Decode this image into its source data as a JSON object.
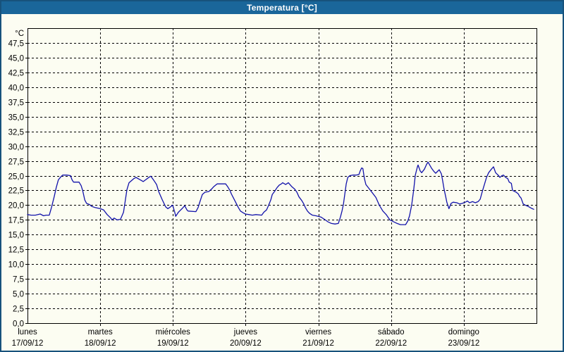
{
  "window": {
    "title": "Temperatura [°C]"
  },
  "colors": {
    "titlebar_bg": "#1a669a",
    "window_border": "#17527c",
    "background": "#fcfdf2",
    "grid": "#000000",
    "series_line": "#1212aa",
    "title_text": "#ffffff",
    "label_text": "#000000"
  },
  "chart_data": {
    "type": "line",
    "title": "Temperatura [°C]",
    "y_unit_label": "°C",
    "ylim": [
      0,
      50
    ],
    "ytick_step": 2.5,
    "ytick_labels": [
      "0,0",
      "2,5",
      "5,0",
      "7,5",
      "10,0",
      "12,5",
      "15,0",
      "17,5",
      "20,0",
      "22,5",
      "25,0",
      "27,5",
      "30,0",
      "32,5",
      "35,0",
      "37,5",
      "40,0",
      "42,5",
      "45,0",
      "47,5"
    ],
    "grid": "dashed",
    "x_axis_hours_total": 168,
    "x_days": [
      {
        "weekday": "lunes",
        "date": "17/09/12"
      },
      {
        "weekday": "martes",
        "date": "18/09/12"
      },
      {
        "weekday": "miércoles",
        "date": "19/09/12"
      },
      {
        "weekday": "jueves",
        "date": "20/09/12"
      },
      {
        "weekday": "viernes",
        "date": "21/09/12"
      },
      {
        "weekday": "sábado",
        "date": "22/09/12"
      },
      {
        "weekday": "domingo",
        "date": "23/09/12"
      }
    ],
    "series": [
      {
        "name": "Temperatura",
        "color": "#1212aa",
        "points": [
          [
            0,
            18.4
          ],
          [
            1.2,
            18.3
          ],
          [
            2.6,
            18.3
          ],
          [
            4.2,
            18.5
          ],
          [
            5.3,
            18.2
          ],
          [
            6.1,
            18.3
          ],
          [
            7.2,
            18.3
          ],
          [
            7.9,
            19.6
          ],
          [
            8.8,
            21.4
          ],
          [
            9.5,
            23.0
          ],
          [
            10.2,
            24.3
          ],
          [
            11.2,
            24.9
          ],
          [
            11.6,
            25.1
          ],
          [
            13.0,
            25.1
          ],
          [
            14.2,
            25.0
          ],
          [
            14.7,
            24.3
          ],
          [
            15.2,
            23.9
          ],
          [
            17.0,
            23.9
          ],
          [
            17.7,
            23.3
          ],
          [
            18.2,
            22.5
          ],
          [
            18.9,
            20.9
          ],
          [
            19.5,
            20.3
          ],
          [
            20.5,
            20.1
          ],
          [
            21.2,
            19.8
          ],
          [
            22.3,
            19.6
          ],
          [
            24.0,
            19.4
          ],
          [
            25.1,
            19.2
          ],
          [
            26.3,
            18.4
          ],
          [
            27.5,
            17.8
          ],
          [
            27.9,
            17.5
          ],
          [
            28.6,
            17.8
          ],
          [
            29.6,
            17.5
          ],
          [
            30.7,
            17.6
          ],
          [
            31.7,
            18.8
          ],
          [
            32.1,
            20.2
          ],
          [
            32.8,
            22.6
          ],
          [
            33.5,
            23.8
          ],
          [
            35.1,
            24.5
          ],
          [
            35.8,
            24.7
          ],
          [
            37.5,
            24.2
          ],
          [
            38.2,
            24.0
          ],
          [
            40.3,
            24.8
          ],
          [
            40.7,
            24.9
          ],
          [
            41.7,
            24.2
          ],
          [
            42.6,
            23.5
          ],
          [
            43.3,
            22.3
          ],
          [
            44.5,
            20.9
          ],
          [
            45.6,
            19.7
          ],
          [
            46.3,
            19.4
          ],
          [
            47.2,
            19.7
          ],
          [
            47.9,
            20.0
          ],
          [
            48.6,
            18.8
          ],
          [
            48.9,
            18.1
          ],
          [
            49.8,
            18.8
          ],
          [
            51.0,
            19.4
          ],
          [
            51.9,
            19.9
          ],
          [
            52.6,
            19.2
          ],
          [
            53.0,
            19.0
          ],
          [
            55.6,
            18.9
          ],
          [
            56.3,
            19.6
          ],
          [
            56.8,
            20.4
          ],
          [
            57.3,
            21.2
          ],
          [
            57.7,
            21.8
          ],
          [
            58.6,
            22.2
          ],
          [
            59.8,
            22.3
          ],
          [
            60.7,
            22.7
          ],
          [
            61.4,
            23.1
          ],
          [
            62.1,
            23.4
          ],
          [
            62.6,
            23.6
          ],
          [
            65.4,
            23.6
          ],
          [
            66.1,
            23.1
          ],
          [
            66.8,
            22.5
          ],
          [
            67.3,
            21.9
          ],
          [
            68.0,
            21.2
          ],
          [
            68.9,
            20.3
          ],
          [
            69.6,
            19.6
          ],
          [
            70.3,
            19.0
          ],
          [
            71.2,
            18.7
          ],
          [
            71.9,
            18.5
          ],
          [
            73.1,
            18.4
          ],
          [
            74.2,
            18.3
          ],
          [
            75.4,
            18.4
          ],
          [
            77.3,
            18.3
          ],
          [
            78.0,
            18.8
          ],
          [
            78.9,
            19.2
          ],
          [
            79.6,
            20.0
          ],
          [
            80.3,
            20.9
          ],
          [
            80.8,
            21.8
          ],
          [
            81.5,
            22.3
          ],
          [
            82.4,
            23.0
          ],
          [
            83.1,
            23.4
          ],
          [
            83.8,
            23.6
          ],
          [
            84.2,
            23.8
          ],
          [
            85.2,
            23.5
          ],
          [
            86.1,
            23.8
          ],
          [
            87.3,
            23.1
          ],
          [
            88.2,
            22.7
          ],
          [
            88.9,
            22.2
          ],
          [
            89.6,
            21.4
          ],
          [
            90.5,
            20.8
          ],
          [
            91.2,
            20.2
          ],
          [
            91.7,
            19.6
          ],
          [
            92.4,
            19.0
          ],
          [
            93.1,
            18.6
          ],
          [
            94.0,
            18.3
          ],
          [
            95.2,
            18.2
          ],
          [
            96.8,
            18.0
          ],
          [
            98.0,
            17.6
          ],
          [
            99.1,
            17.2
          ],
          [
            100.3,
            16.9
          ],
          [
            101.5,
            16.8
          ],
          [
            102.6,
            16.9
          ],
          [
            103.3,
            18.0
          ],
          [
            103.8,
            19.0
          ],
          [
            104.3,
            20.2
          ],
          [
            104.7,
            21.8
          ],
          [
            105.2,
            23.6
          ],
          [
            105.7,
            24.7
          ],
          [
            106.4,
            25.0
          ],
          [
            107.3,
            25.1
          ],
          [
            108.4,
            25.1
          ],
          [
            109.4,
            25.2
          ],
          [
            109.8,
            25.8
          ],
          [
            110.3,
            26.3
          ],
          [
            110.7,
            26.2
          ],
          [
            111.2,
            24.5
          ],
          [
            111.7,
            23.5
          ],
          [
            112.6,
            22.9
          ],
          [
            113.8,
            22.1
          ],
          [
            115.0,
            21.3
          ],
          [
            116.1,
            20.0
          ],
          [
            117.3,
            19.0
          ],
          [
            118.4,
            18.4
          ],
          [
            119.6,
            17.5
          ],
          [
            120.8,
            17.2
          ],
          [
            122.0,
            16.9
          ],
          [
            123.1,
            16.7
          ],
          [
            124.8,
            16.7
          ],
          [
            125.5,
            17.3
          ],
          [
            126.1,
            18.2
          ],
          [
            126.8,
            20.0
          ],
          [
            127.5,
            22.7
          ],
          [
            128.0,
            25.1
          ],
          [
            128.7,
            26.5
          ],
          [
            128.9,
            26.8
          ],
          [
            129.6,
            25.8
          ],
          [
            130.1,
            25.5
          ],
          [
            131.0,
            26.1
          ],
          [
            131.7,
            26.9
          ],
          [
            132.2,
            27.3
          ],
          [
            133.3,
            26.3
          ],
          [
            134.0,
            25.8
          ],
          [
            134.7,
            25.4
          ],
          [
            135.9,
            26.0
          ],
          [
            136.6,
            25.3
          ],
          [
            137.0,
            24.2
          ],
          [
            137.5,
            22.7
          ],
          [
            138.0,
            21.5
          ],
          [
            138.4,
            20.5
          ],
          [
            139.1,
            19.4
          ],
          [
            139.8,
            20.3
          ],
          [
            140.5,
            20.5
          ],
          [
            141.7,
            20.4
          ],
          [
            142.6,
            20.2
          ],
          [
            143.5,
            20.3
          ],
          [
            144.5,
            20.5
          ],
          [
            145.2,
            20.7
          ],
          [
            145.9,
            20.4
          ],
          [
            146.9,
            20.6
          ],
          [
            147.8,
            20.4
          ],
          [
            148.7,
            20.6
          ],
          [
            149.4,
            21.0
          ],
          [
            150.1,
            22.3
          ],
          [
            150.8,
            23.5
          ],
          [
            151.5,
            24.7
          ],
          [
            152.2,
            25.5
          ],
          [
            153.1,
            26.1
          ],
          [
            153.8,
            26.5
          ],
          [
            154.5,
            25.5
          ],
          [
            155.5,
            25.0
          ],
          [
            155.9,
            24.7
          ],
          [
            156.6,
            25.0
          ],
          [
            157.1,
            25.1
          ],
          [
            157.8,
            24.7
          ],
          [
            158.5,
            24.5
          ],
          [
            159.0,
            23.9
          ],
          [
            159.7,
            23.7
          ],
          [
            160.1,
            22.5
          ],
          [
            161.3,
            22.2
          ],
          [
            162.0,
            21.9
          ],
          [
            162.4,
            21.5
          ],
          [
            162.9,
            21.2
          ],
          [
            163.6,
            20.2
          ],
          [
            164.3,
            20.0
          ],
          [
            165.2,
            19.8
          ],
          [
            165.9,
            19.6
          ],
          [
            166.6,
            19.4
          ],
          [
            167.1,
            19.3
          ]
        ]
      }
    ]
  }
}
